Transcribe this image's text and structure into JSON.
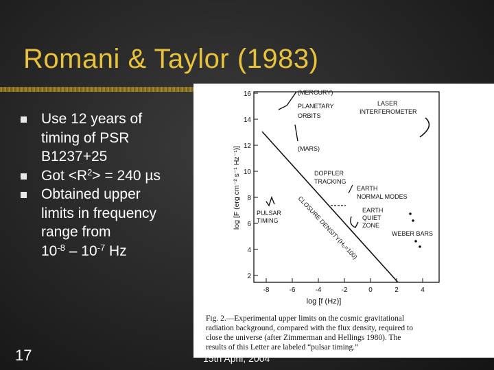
{
  "slide": {
    "title": "Romani & Taylor (1983)",
    "bullets": [
      {
        "lines": [
          "Use 12 years of",
          "timing of PSR",
          "B1237+25"
        ]
      },
      {
        "prefix": "Got <R",
        "sup": "2",
        "suffix": "> = 240 µs"
      },
      {
        "lines": [
          "Obtained upper",
          "limits in frequency",
          "range from"
        ],
        "range_a": "10",
        "range_a_exp": "-8",
        "range_mid": " – 10",
        "range_b_exp": "-7",
        "range_unit": " Hz"
      }
    ],
    "slide_number": "17",
    "footer_date": "15th April, 2004"
  },
  "figure": {
    "y_axis_label": "log [F (erg cm⁻² s⁻¹ Hz⁻¹)]",
    "x_axis_label": "log [f (Hz)]",
    "y_ticks": [
      "16",
      "14",
      "12",
      "10",
      "8",
      "6",
      "4",
      "2"
    ],
    "x_ticks": [
      "-8",
      "-6",
      "-4",
      "-2",
      "0",
      "2",
      "4"
    ],
    "annotations": {
      "mercury": "(MERCURY)",
      "planetary": "PLANETARY",
      "orbits": "ORBITS",
      "mars": "(MARS)",
      "laser": "LASER",
      "interferometer": "INTERFEROMETER",
      "doppler": "DOPPLER",
      "tracking": "TRACKING",
      "earth_normal": "EARTH",
      "normal_modes": "NORMAL MODES",
      "earth_quiet": "EARTH",
      "quiet": "QUIET",
      "zone": "ZONE",
      "pulsar": "PULSAR",
      "timing": "TIMING",
      "weber": "WEBER BARS",
      "closure": "CLOSURE DENSITY(H₀=100)"
    },
    "caption": {
      "lead": "FIG. 2.",
      "lines": [
        "Fig. 2.—Experimental upper limits on the cosmic gravitational",
        "radiation background, compared with the flux density, required to",
        "close the universe (after Zimmerman and Hellings 1980). The",
        "results of this Letter are labeled “pulsar timing.”"
      ]
    }
  },
  "colors": {
    "title": "#e8c23a",
    "text": "#ffffff",
    "background": "#2a2a2a"
  }
}
